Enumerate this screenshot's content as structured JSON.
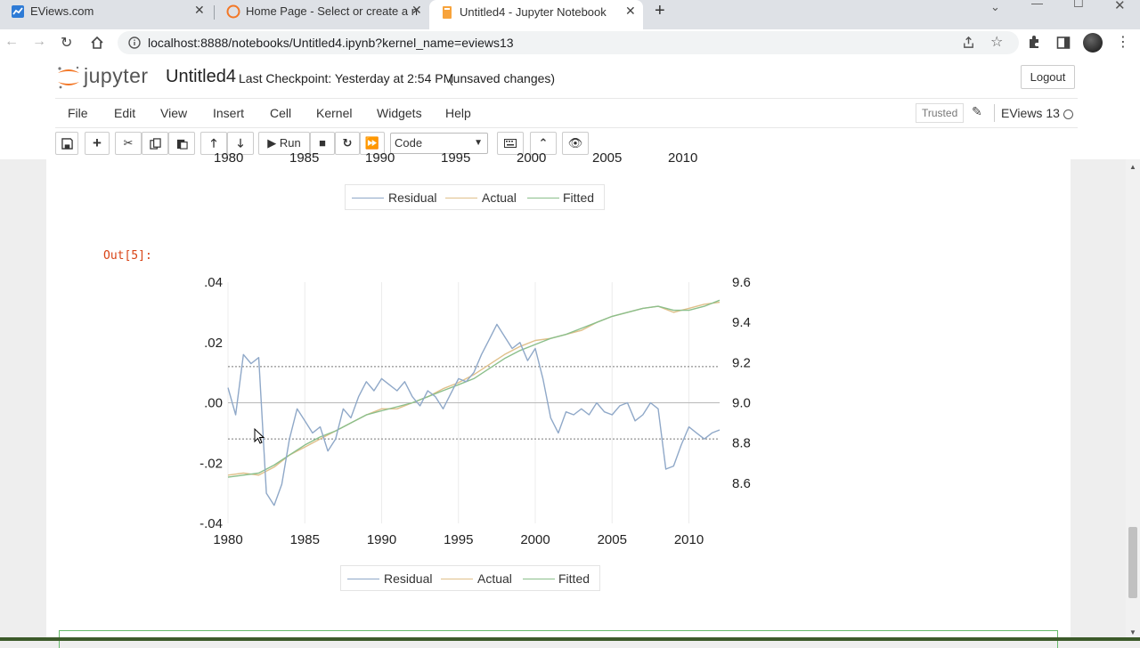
{
  "browser": {
    "tabs": [
      {
        "title": "EViews.com"
      },
      {
        "title": "Home Page - Select or create a n"
      },
      {
        "title": "Untitled4 - Jupyter Notebook"
      }
    ],
    "url": "localhost:8888/notebooks/Untitled4.ipynb?kernel_name=eviews13"
  },
  "jupyter": {
    "logo_text": "jupyter",
    "notebook_name": "Untitled4",
    "checkpoint": "Last Checkpoint: Yesterday at 2:54 PM",
    "unsaved": "(unsaved changes)",
    "logout_label": "Logout",
    "menu": [
      "File",
      "Edit",
      "View",
      "Insert",
      "Cell",
      "Kernel",
      "Widgets",
      "Help"
    ],
    "trusted_label": "Trusted",
    "kernel_name": "EViews 13",
    "run_label": "Run",
    "cell_type": "Code"
  },
  "previous_output": {
    "x_ticks_partial": [
      "1980",
      "1985",
      "1990",
      "1995",
      "2000",
      "2005",
      "2010"
    ],
    "legend": [
      "Residual",
      "Actual",
      "Fitted"
    ]
  },
  "output_prompt": "Out[5]:",
  "chart_data": {
    "type": "line",
    "x_ticks": [
      "1980",
      "1985",
      "1990",
      "1995",
      "2000",
      "2005",
      "2010"
    ],
    "xlim": [
      1980,
      2012
    ],
    "left_axis": {
      "ticks": [
        ".04",
        ".02",
        ".00",
        "-.02",
        "-.04"
      ],
      "ylim": [
        -0.04,
        0.04
      ]
    },
    "right_axis": {
      "ticks": [
        "9.6",
        "9.4",
        "9.2",
        "9.0",
        "8.8",
        "8.6"
      ],
      "ylim": [
        8.4,
        9.6
      ]
    },
    "residual_band": [
      -0.012,
      0.012
    ],
    "series": [
      {
        "name": "Actual",
        "axis": "right",
        "color": "#e0c08a",
        "x": [
          1980,
          1981,
          1982,
          1983,
          1984,
          1985,
          1986,
          1987,
          1988,
          1989,
          1990,
          1991,
          1992,
          1993,
          1994,
          1995,
          1996,
          1997,
          1998,
          1999,
          2000,
          2001,
          2002,
          2003,
          2004,
          2005,
          2006,
          2007,
          2008,
          2009,
          2010,
          2011,
          2012
        ],
        "values": [
          8.64,
          8.65,
          8.64,
          8.68,
          8.74,
          8.78,
          8.82,
          8.86,
          8.9,
          8.94,
          8.97,
          8.97,
          9.0,
          9.03,
          9.07,
          9.1,
          9.14,
          9.19,
          9.24,
          9.28,
          9.31,
          9.32,
          9.34,
          9.36,
          9.4,
          9.43,
          9.45,
          9.47,
          9.48,
          9.45,
          9.47,
          9.49,
          9.5
        ]
      },
      {
        "name": "Fitted",
        "axis": "right",
        "color": "#8bbf8b",
        "x": [
          1980,
          1981,
          1982,
          1983,
          1984,
          1985,
          1986,
          1987,
          1988,
          1989,
          1990,
          1991,
          1992,
          1993,
          1994,
          1995,
          1996,
          1997,
          1998,
          1999,
          2000,
          2001,
          2002,
          2003,
          2004,
          2005,
          2006,
          2007,
          2008,
          2009,
          2010,
          2011,
          2012
        ],
        "values": [
          8.63,
          8.64,
          8.65,
          8.69,
          8.74,
          8.79,
          8.83,
          8.86,
          8.9,
          8.94,
          8.96,
          8.98,
          9.0,
          9.03,
          9.06,
          9.09,
          9.12,
          9.17,
          9.22,
          9.26,
          9.29,
          9.32,
          9.34,
          9.37,
          9.4,
          9.43,
          9.45,
          9.47,
          9.48,
          9.46,
          9.46,
          9.48,
          9.51
        ]
      },
      {
        "name": "Residual",
        "axis": "left",
        "color": "#8fa8c8",
        "x": [
          1980.0,
          1980.5,
          1981.0,
          1981.5,
          1982.0,
          1982.5,
          1983.0,
          1983.5,
          1984.0,
          1984.5,
          1985.0,
          1985.5,
          1986.0,
          1986.5,
          1987.0,
          1987.5,
          1988.0,
          1988.5,
          1989.0,
          1989.5,
          1990.0,
          1990.5,
          1991.0,
          1991.5,
          1992.0,
          1992.5,
          1993.0,
          1993.5,
          1994.0,
          1994.5,
          1995.0,
          1995.5,
          1996.0,
          1996.5,
          1997.0,
          1997.5,
          1998.0,
          1998.5,
          1999.0,
          1999.5,
          2000.0,
          2000.5,
          2001.0,
          2001.5,
          2002.0,
          2002.5,
          2003.0,
          2003.5,
          2004.0,
          2004.5,
          2005.0,
          2005.5,
          2006.0,
          2006.5,
          2007.0,
          2007.5,
          2008.0,
          2008.5,
          2009.0,
          2009.5,
          2010.0,
          2010.5,
          2011.0,
          2011.5,
          2012.0
        ],
        "values": [
          0.005,
          -0.004,
          0.016,
          0.013,
          0.015,
          -0.03,
          -0.034,
          -0.027,
          -0.012,
          -0.002,
          -0.006,
          -0.01,
          -0.008,
          -0.016,
          -0.012,
          -0.002,
          -0.005,
          0.002,
          0.007,
          0.004,
          0.008,
          0.006,
          0.004,
          0.007,
          0.002,
          -0.001,
          0.004,
          0.002,
          -0.002,
          0.003,
          0.008,
          0.007,
          0.01,
          0.016,
          0.021,
          0.026,
          0.022,
          0.018,
          0.02,
          0.014,
          0.018,
          0.008,
          -0.005,
          -0.01,
          -0.003,
          -0.004,
          -0.002,
          -0.004,
          0.0,
          -0.003,
          -0.004,
          -0.001,
          0.0,
          -0.006,
          -0.004,
          0.0,
          -0.002,
          -0.022,
          -0.021,
          -0.014,
          -0.008,
          -0.01,
          -0.012,
          -0.01,
          -0.009
        ]
      }
    ],
    "legend": [
      "Residual",
      "Actual",
      "Fitted"
    ],
    "legend_position": "bottom"
  }
}
